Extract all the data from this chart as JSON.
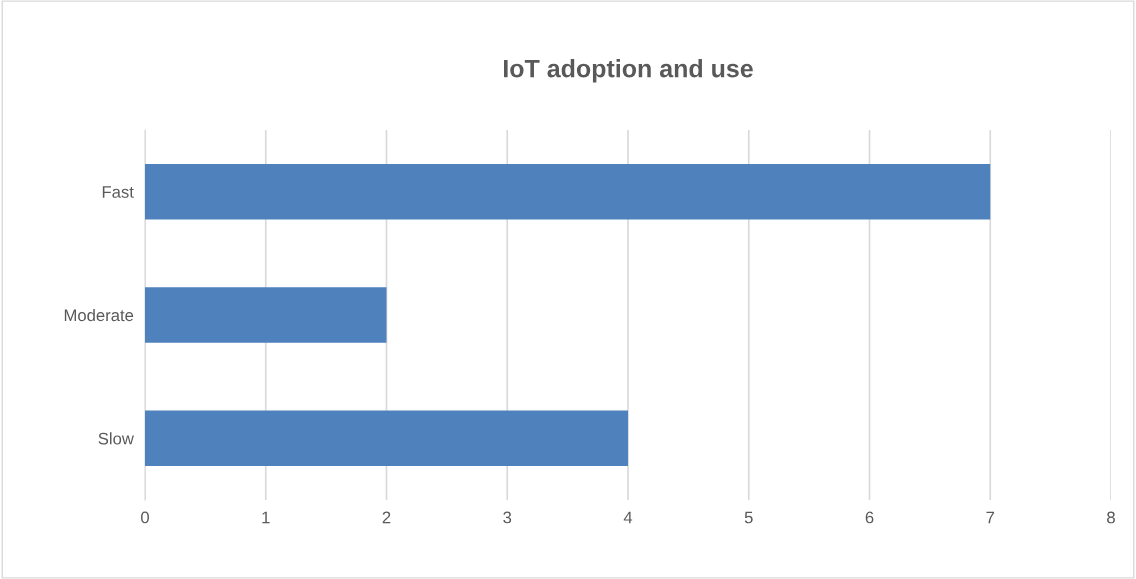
{
  "chart_data": {
    "type": "bar",
    "title": "IoT adoption and use",
    "orientation": "horizontal",
    "categories": [
      "Fast",
      "Moderate",
      "Slow"
    ],
    "values": [
      7,
      2,
      4
    ],
    "color": "#4f81bd",
    "xlim": [
      0,
      8
    ],
    "xticks": [
      0,
      1,
      2,
      3,
      4,
      5,
      6,
      7,
      8
    ],
    "grid": "x",
    "legend": false
  }
}
